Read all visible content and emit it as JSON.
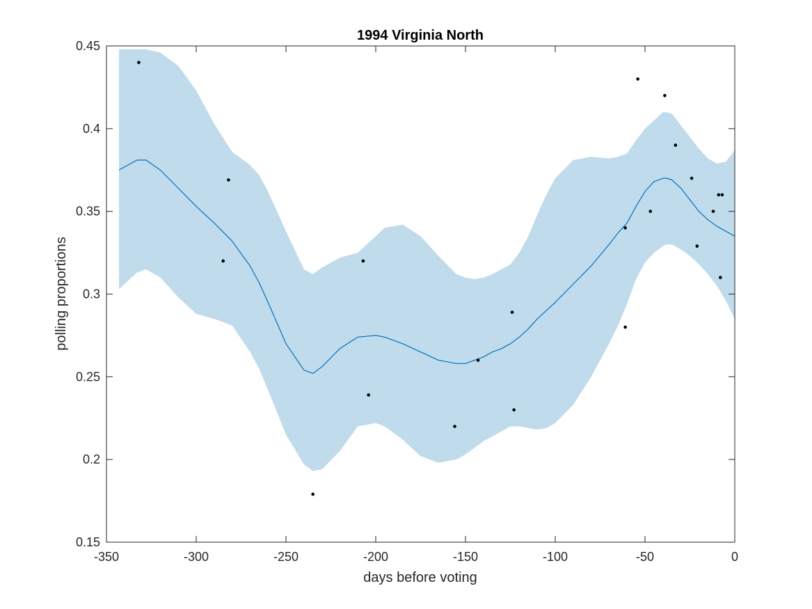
{
  "chart_data": {
    "type": "line",
    "title": "1994 Virginia North",
    "xlabel": "days before voting",
    "ylabel": "polling proportions",
    "xlim": [
      -350,
      0
    ],
    "ylim": [
      0.15,
      0.45
    ],
    "xticks": [
      -350,
      -300,
      -250,
      -200,
      -150,
      -100,
      -50,
      0
    ],
    "xtick_labels": [
      "-350",
      "-300",
      "-250",
      "-200",
      "-150",
      "-100",
      "-50",
      "0"
    ],
    "yticks": [
      0.15,
      0.2,
      0.25,
      0.3,
      0.35,
      0.4,
      0.45
    ],
    "ytick_labels": [
      "0.15",
      "0.2",
      "0.25",
      "0.3",
      "0.35",
      "0.4",
      "0.45"
    ],
    "grid": false,
    "colors": {
      "band": "#c0dbeb",
      "line": "#0072bd",
      "points": "#000000",
      "axes": "#262626"
    },
    "series": [
      {
        "kind": "confidence-band",
        "x": [
          -343,
          -338,
          -333,
          -328,
          -320,
          -310,
          -300,
          -290,
          -280,
          -270,
          -265,
          -260,
          -250,
          -240,
          -235,
          -230,
          -220,
          -210,
          -200,
          -195,
          -185,
          -175,
          -165,
          -155,
          -150,
          -145,
          -140,
          -135,
          -130,
          -125,
          -120,
          -115,
          -110,
          -105,
          -100,
          -90,
          -80,
          -70,
          -65,
          -60,
          -55,
          -50,
          -45,
          -40,
          -38,
          -35,
          -30,
          -25,
          -20,
          -15,
          -10,
          -5,
          0
        ],
        "upper": [
          0.448,
          0.448,
          0.448,
          0.448,
          0.446,
          0.438,
          0.423,
          0.403,
          0.386,
          0.378,
          0.372,
          0.362,
          0.338,
          0.315,
          0.312,
          0.316,
          0.322,
          0.325,
          0.335,
          0.34,
          0.342,
          0.335,
          0.323,
          0.312,
          0.31,
          0.309,
          0.31,
          0.312,
          0.315,
          0.318,
          0.325,
          0.335,
          0.348,
          0.36,
          0.37,
          0.381,
          0.383,
          0.382,
          0.383,
          0.385,
          0.393,
          0.4,
          0.405,
          0.41,
          0.41,
          0.409,
          0.402,
          0.395,
          0.388,
          0.382,
          0.379,
          0.38,
          0.387
        ],
        "lower": [
          0.303,
          0.308,
          0.313,
          0.315,
          0.31,
          0.298,
          0.288,
          0.285,
          0.281,
          0.265,
          0.255,
          0.242,
          0.215,
          0.197,
          0.193,
          0.194,
          0.205,
          0.22,
          0.222,
          0.22,
          0.212,
          0.202,
          0.198,
          0.2,
          0.203,
          0.207,
          0.211,
          0.214,
          0.217,
          0.22,
          0.22,
          0.219,
          0.218,
          0.219,
          0.222,
          0.233,
          0.25,
          0.27,
          0.281,
          0.294,
          0.309,
          0.319,
          0.325,
          0.329,
          0.33,
          0.33,
          0.327,
          0.323,
          0.318,
          0.312,
          0.305,
          0.296,
          0.285
        ]
      },
      {
        "kind": "mean-line",
        "x": [
          -343,
          -338,
          -333,
          -328,
          -320,
          -310,
          -300,
          -290,
          -280,
          -270,
          -265,
          -260,
          -250,
          -240,
          -235,
          -230,
          -220,
          -210,
          -200,
          -195,
          -185,
          -175,
          -165,
          -155,
          -150,
          -145,
          -140,
          -135,
          -130,
          -125,
          -120,
          -115,
          -110,
          -105,
          -100,
          -90,
          -80,
          -70,
          -65,
          -60,
          -55,
          -50,
          -45,
          -40,
          -38,
          -35,
          -30,
          -25,
          -20,
          -15,
          -10,
          -5,
          0
        ],
        "y": [
          0.375,
          0.378,
          0.381,
          0.381,
          0.375,
          0.364,
          0.353,
          0.343,
          0.332,
          0.317,
          0.307,
          0.295,
          0.27,
          0.254,
          0.252,
          0.256,
          0.267,
          0.274,
          0.275,
          0.274,
          0.27,
          0.265,
          0.26,
          0.258,
          0.258,
          0.26,
          0.262,
          0.265,
          0.267,
          0.27,
          0.274,
          0.279,
          0.285,
          0.29,
          0.295,
          0.306,
          0.317,
          0.33,
          0.337,
          0.343,
          0.353,
          0.362,
          0.368,
          0.37,
          0.37,
          0.369,
          0.364,
          0.357,
          0.35,
          0.345,
          0.341,
          0.338,
          0.335
        ]
      },
      {
        "kind": "scatter",
        "x": [
          -332,
          -285,
          -282,
          -235,
          -207,
          -204,
          -156,
          -143,
          -124,
          -123,
          -61,
          -61,
          -54,
          -47,
          -39,
          -33,
          -24,
          -21,
          -12,
          -9,
          -7,
          -8
        ],
        "y": [
          0.44,
          0.32,
          0.369,
          0.179,
          0.32,
          0.239,
          0.22,
          0.26,
          0.289,
          0.23,
          0.34,
          0.28,
          0.43,
          0.35,
          0.42,
          0.39,
          0.37,
          0.329,
          0.35,
          0.36,
          0.36,
          0.31
        ]
      }
    ]
  }
}
